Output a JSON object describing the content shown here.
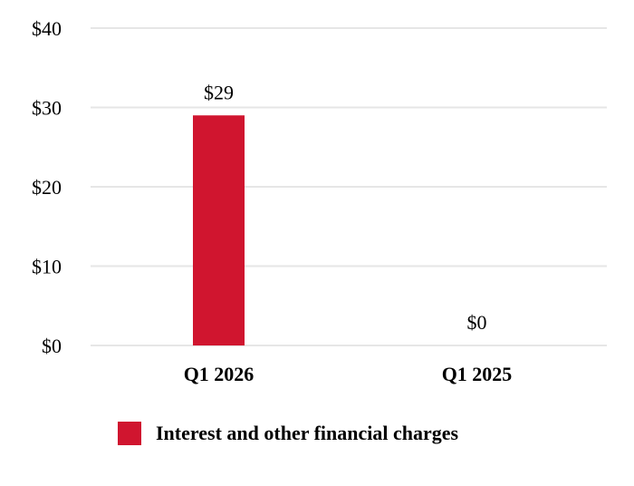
{
  "chart_data": {
    "type": "bar",
    "categories": [
      "Q1 2026",
      "Q1 2025"
    ],
    "series": [
      {
        "name": "Interest and other financial charges",
        "values": [
          29,
          0
        ],
        "color": "#d0152f"
      }
    ],
    "data_labels": [
      "$29",
      "$0"
    ],
    "y_ticks": [
      0,
      10,
      20,
      30,
      40
    ],
    "y_tick_labels": [
      "$0",
      "$10",
      "$20",
      "$30",
      "$40"
    ],
    "ylim": [
      0,
      40
    ],
    "grid": true,
    "grid_color": "#e6e6e6",
    "legend_position": "bottom"
  }
}
